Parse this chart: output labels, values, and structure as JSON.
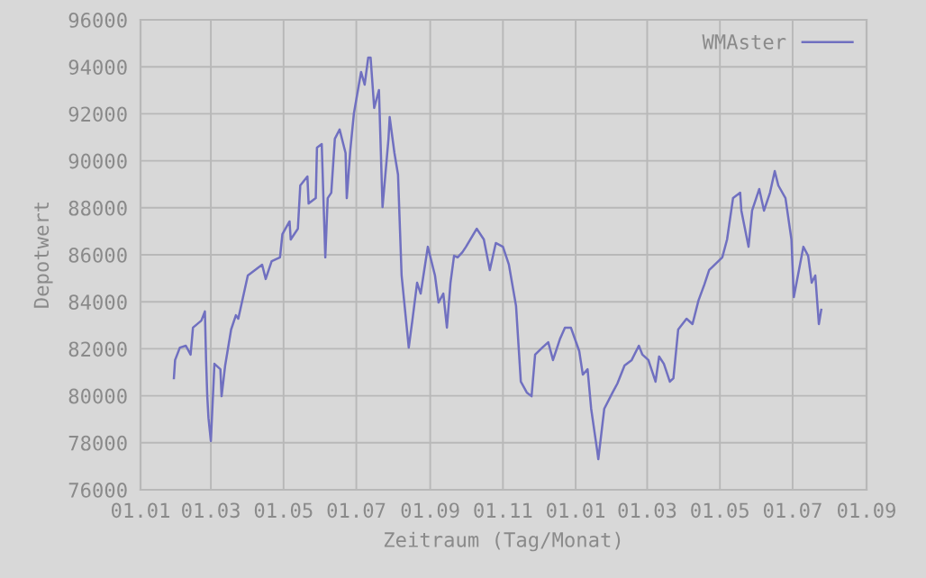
{
  "chart_data": {
    "type": "line",
    "xlabel": "Zeitraum (Tag/Monat)",
    "ylabel": "Depotwert",
    "xlim": [
      "2007-01-01",
      "2008-09-01"
    ],
    "xticks": [
      {
        "value": "2007-01-01",
        "label": "01.01"
      },
      {
        "value": "2007-03-01",
        "label": "01.03"
      },
      {
        "value": "2007-05-01",
        "label": "01.05"
      },
      {
        "value": "2007-07-01",
        "label": "01.07"
      },
      {
        "value": "2007-09-01",
        "label": "01.09"
      },
      {
        "value": "2007-11-01",
        "label": "01.11"
      },
      {
        "value": "2008-01-01",
        "label": "01.01"
      },
      {
        "value": "2008-03-01",
        "label": "01.03"
      },
      {
        "value": "2008-05-01",
        "label": "01.05"
      },
      {
        "value": "2008-07-01",
        "label": "01.07"
      },
      {
        "value": "2008-09-01",
        "label": "01.09"
      }
    ],
    "ylim": [
      76000,
      96000
    ],
    "yticks": [
      76000,
      78000,
      80000,
      82000,
      84000,
      86000,
      88000,
      90000,
      92000,
      94000,
      96000
    ],
    "grid": true,
    "legend": "top right",
    "marker": "none",
    "line_style": "solid",
    "series": [
      {
        "name": "WMAster",
        "color": "#7070c0",
        "x": [
          "2007-01-29",
          "2007-01-30",
          "2007-02-03",
          "2007-02-08",
          "2007-02-12",
          "2007-02-14",
          "2007-02-21",
          "2007-02-24",
          "2007-02-25",
          "2007-02-26",
          "2007-02-27",
          "2007-03-01",
          "2007-03-04",
          "2007-03-09",
          "2007-03-10",
          "2007-03-13",
          "2007-03-18",
          "2007-03-22",
          "2007-03-24",
          "2007-03-28",
          "2007-04-01",
          "2007-04-07",
          "2007-04-13",
          "2007-04-16",
          "2007-04-21",
          "2007-04-28",
          "2007-04-30",
          "2007-05-06",
          "2007-05-07",
          "2007-05-13",
          "2007-05-15",
          "2007-05-21",
          "2007-05-22",
          "2007-05-28",
          "2007-05-29",
          "2007-06-02",
          "2007-06-05",
          "2007-06-07",
          "2007-06-10",
          "2007-06-13",
          "2007-06-17",
          "2007-06-22",
          "2007-06-23",
          "2007-06-26",
          "2007-06-29",
          "2007-07-05",
          "2007-07-08",
          "2007-07-11",
          "2007-07-13",
          "2007-07-16",
          "2007-07-20",
          "2007-07-23",
          "2007-07-28",
          "2007-07-29",
          "2007-08-02",
          "2007-08-05",
          "2007-08-08",
          "2007-08-14",
          "2007-08-17",
          "2007-08-21",
          "2007-08-24",
          "2007-08-27",
          "2007-08-30",
          "2007-09-05",
          "2007-09-08",
          "2007-09-12",
          "2007-09-15",
          "2007-09-18",
          "2007-09-21",
          "2007-09-24",
          "2007-09-28",
          "2007-10-01",
          "2007-10-10",
          "2007-10-16",
          "2007-10-21",
          "2007-10-26",
          "2007-11-01",
          "2007-11-06",
          "2007-11-12",
          "2007-11-16",
          "2007-11-21",
          "2007-11-25",
          "2007-11-28",
          "2007-12-04",
          "2007-12-09",
          "2007-12-13",
          "2007-12-19",
          "2007-12-23",
          "2007-12-28",
          "2008-01-04",
          "2008-01-07",
          "2008-01-11",
          "2008-01-14",
          "2008-01-19",
          "2008-01-20",
          "2008-01-25",
          "2008-02-01",
          "2008-02-05",
          "2008-02-11",
          "2008-02-17",
          "2008-02-23",
          "2008-02-26",
          "2008-03-02",
          "2008-03-08",
          "2008-03-11",
          "2008-03-15",
          "2008-03-20",
          "2008-03-23",
          "2008-03-27",
          "2008-04-03",
          "2008-04-08",
          "2008-04-13",
          "2008-04-18",
          "2008-04-22",
          "2008-04-25",
          "2008-05-03",
          "2008-05-07",
          "2008-05-12",
          "2008-05-18",
          "2008-05-19",
          "2008-05-25",
          "2008-05-28",
          "2008-06-03",
          "2008-06-07",
          "2008-06-12",
          "2008-06-16",
          "2008-06-19",
          "2008-06-25",
          "2008-06-30",
          "2008-07-02",
          "2008-07-10",
          "2008-07-14",
          "2008-07-17",
          "2008-07-20",
          "2008-07-23",
          "2008-07-25"
        ],
        "values": [
          80750,
          81520,
          82050,
          82130,
          81750,
          82900,
          83200,
          83590,
          81520,
          79980,
          79060,
          78070,
          81360,
          81130,
          79980,
          81290,
          82820,
          83430,
          83280,
          84200,
          85120,
          85350,
          85580,
          84970,
          85730,
          85890,
          86880,
          87420,
          86650,
          87110,
          88950,
          89330,
          88180,
          88410,
          90560,
          90710,
          85890,
          88410,
          88640,
          90940,
          91330,
          90330,
          88410,
          90480,
          92020,
          93780,
          93240,
          94390,
          94390,
          92250,
          93010,
          88030,
          90940,
          91860,
          90330,
          89410,
          85120,
          82050,
          83200,
          84810,
          84350,
          85350,
          86340,
          85120,
          83970,
          84350,
          82900,
          84810,
          85960,
          85890,
          86110,
          86340,
          87110,
          86650,
          85350,
          86500,
          86340,
          85580,
          83820,
          80600,
          80140,
          79980,
          81750,
          82050,
          82280,
          81520,
          82440,
          82900,
          82900,
          81900,
          80900,
          81130,
          79450,
          77690,
          77300,
          79450,
          80140,
          80520,
          81290,
          81520,
          82130,
          81750,
          81520,
          80600,
          81670,
          81360,
          80600,
          80750,
          82820,
          83280,
          83050,
          84050,
          84740,
          85350,
          85500,
          85890,
          86650,
          88410,
          88640,
          87880,
          86340,
          87880,
          88800,
          87880,
          88640,
          89560,
          88950,
          88410,
          86650,
          84200,
          86340,
          85960,
          84810,
          85120,
          83050,
          83660
        ]
      }
    ]
  }
}
